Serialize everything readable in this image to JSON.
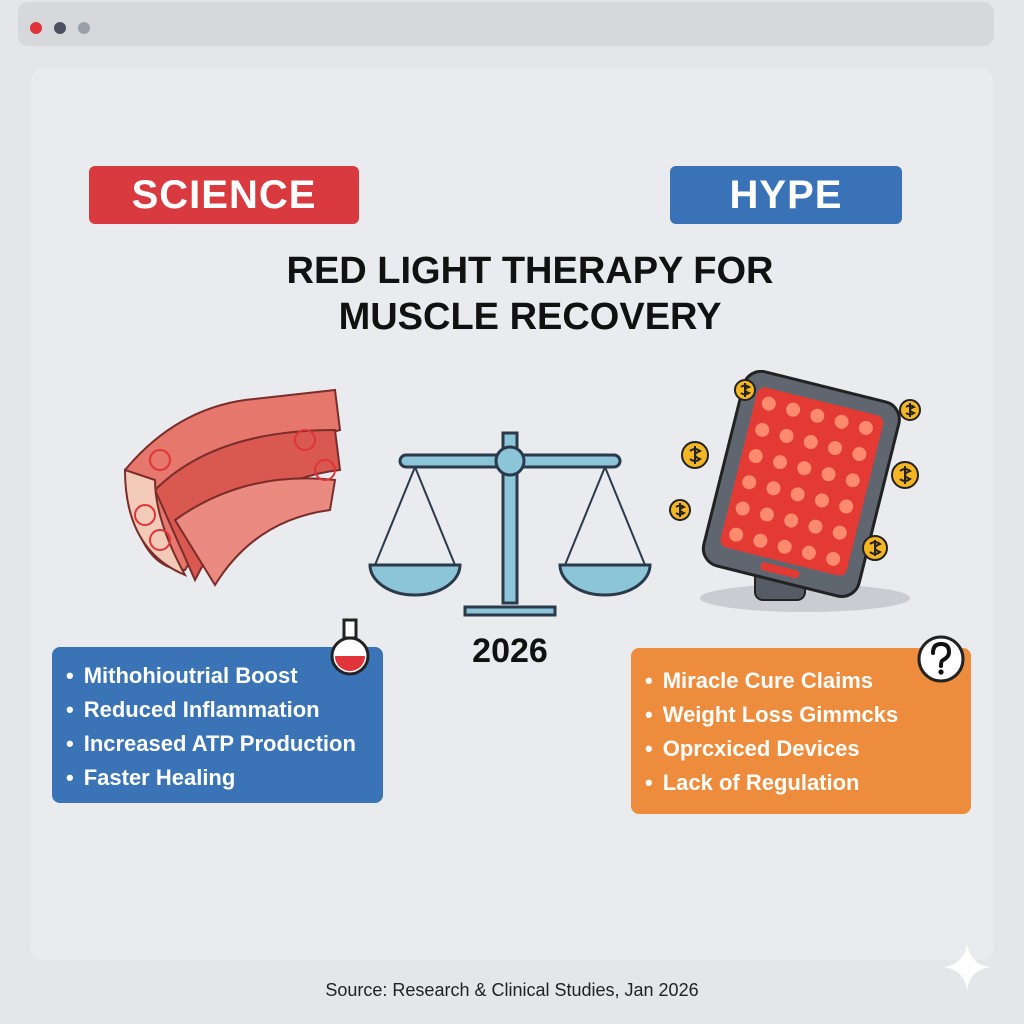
{
  "window": {
    "controls": [
      "close",
      "minimize",
      "maximize"
    ]
  },
  "badges": {
    "science": "SCIENCE",
    "hype": "HYPE"
  },
  "colors": {
    "science": "#d93a3f",
    "hype": "#3a72b8",
    "science_list": "#3a74b6",
    "hype_list": "#ee8c3e"
  },
  "title": {
    "line1": "RED LIGHT THERAPY FOR",
    "line2": "MUSCLE RECOVERY"
  },
  "year": "2026",
  "science_list": [
    "Mithohioutrial Boost",
    "Reduced Inflammation",
    "Increased ATP Production",
    "Faster Healing"
  ],
  "hype_list": [
    "Miracle Cure Claims",
    "Weight Loss Gimmcks",
    "Oprcxiced Devices",
    "Lack of Regulation"
  ],
  "icons": {
    "science": "flask-icon",
    "hype": "question-icon",
    "center": "balance-scale-icon",
    "muscle": "muscle-icon",
    "device": "red-light-panel-icon",
    "money": "dollar-coin-icon"
  },
  "source": "Source: Research & Clinical Studies, Jan 2026"
}
